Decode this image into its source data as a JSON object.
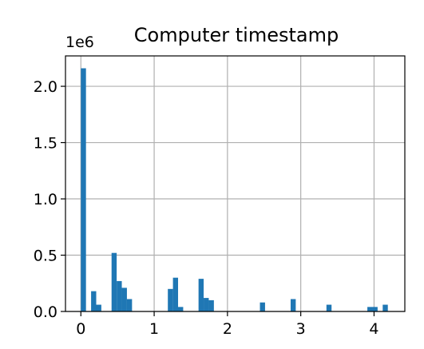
{
  "chart_data": {
    "type": "bar",
    "title": "Computer timestamp",
    "xlabel": "",
    "ylabel": "",
    "y_offset_label": "1e6",
    "xlim": [
      -0.21,
      4.42
    ],
    "ylim": [
      0,
      2.27
    ],
    "x_ticks": [
      0,
      1,
      2,
      3,
      4
    ],
    "x_tick_labels": [
      "0",
      "1",
      "2",
      "3",
      "4"
    ],
    "y_ticks": [
      0,
      0.5,
      1.0,
      1.5,
      2.0
    ],
    "y_tick_labels": [
      "0.0",
      "0.5",
      "1.0",
      "1.5",
      "2.0"
    ],
    "grid": true,
    "bar_color": "#1f77b4",
    "bin_width": 0.0698,
    "series": [
      {
        "bin_start": [
          0.0,
          0.1396,
          0.2094,
          0.4188,
          0.4886,
          0.5584,
          0.6282,
          1.1866,
          1.2564,
          1.3262,
          1.6054,
          1.6752,
          1.745,
          2.443,
          2.8618,
          3.3504,
          3.9088,
          3.9786,
          4.1182
        ],
        "values": [
          2.16,
          0.18,
          0.06,
          0.52,
          0.27,
          0.21,
          0.11,
          0.2,
          0.3,
          0.04,
          0.29,
          0.12,
          0.1,
          0.08,
          0.11,
          0.06,
          0.04,
          0.04,
          0.06
        ]
      }
    ]
  }
}
